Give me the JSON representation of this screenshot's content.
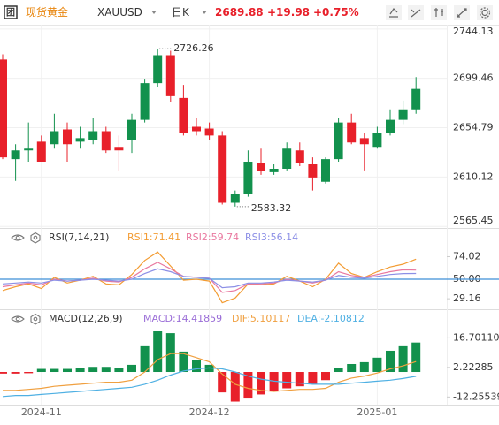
{
  "header": {
    "logo": "团",
    "name": "现货黄金",
    "symbol": "XAUUSD",
    "period": "日K",
    "price": 2689.88,
    "change": {
      "value": 19.98,
      "label": "+19.98"
    },
    "change_pct": {
      "value": 0.75,
      "label": "+0.75%"
    }
  },
  "chart_data": [
    {
      "type": "candlestick",
      "categories": [
        null,
        null,
        null,
        "2024-11",
        null,
        null,
        null,
        null,
        null,
        null,
        null,
        null,
        null,
        null,
        null,
        null,
        "2024-12",
        null,
        null,
        null,
        null,
        null,
        null,
        null,
        null,
        null,
        null,
        null,
        null,
        "2025-01",
        null,
        null,
        null
      ],
      "open": [
        2716.5,
        2626.3,
        2634.2,
        2642.1,
        2639.8,
        2653.2,
        2642.1,
        2643.7,
        2651.6,
        2637.4,
        2643.7,
        2661.9,
        2695.1,
        2720.4,
        2681.7,
        2655.6,
        2654.0,
        2647.7,
        2586.8,
        2594.7,
        2622.4,
        2614.5,
        2617.6,
        2634.2,
        2621.6,
        2605.8,
        2626.3,
        2659.5,
        2645.3,
        2637.4,
        2650.0,
        2661.9,
        2671.4
      ],
      "high": [
        2721.2,
        2639.8,
        2659.5,
        2647.7,
        2667.4,
        2659.5,
        2655.6,
        2663.5,
        2655.6,
        2647.7,
        2667.4,
        2699.1,
        2726.26,
        2724.4,
        2693.5,
        2663.5,
        2659.5,
        2651.6,
        2597.9,
        2634.2,
        2635.8,
        2621.6,
        2641.4,
        2641.4,
        2627.9,
        2627.9,
        2663.5,
        2667.4,
        2650.0,
        2655.6,
        2671.4,
        2679.3,
        2700.6
      ],
      "low": [
        2626.3,
        2606.6,
        2624.0,
        2624.0,
        2635.8,
        2624.0,
        2635.8,
        2639.8,
        2631.9,
        2616.1,
        2631.9,
        2659.5,
        2691.2,
        2677.7,
        2647.7,
        2647.7,
        2643.7,
        2585.2,
        2583.32,
        2592.3,
        2612.1,
        2612.1,
        2616.1,
        2620.0,
        2597.9,
        2604.2,
        2624.0,
        2639.8,
        2616.1,
        2635.8,
        2647.7,
        2658.0,
        2667.4
      ],
      "close": [
        2627.9,
        2634.2,
        2635.8,
        2624.0,
        2651.6,
        2639.8,
        2645.3,
        2651.6,
        2634.2,
        2634.2,
        2661.9,
        2695.1,
        2720.4,
        2683.3,
        2650.0,
        2651.6,
        2647.7,
        2586.8,
        2594.7,
        2624.0,
        2615.3,
        2617.6,
        2635.8,
        2623.2,
        2609.7,
        2626.3,
        2659.5,
        2641.4,
        2639.8,
        2650.0,
        2661.9,
        2671.4,
        2689.88
      ],
      "up_color": "#12914d",
      "down_color": "#e8202a",
      "ylim": [
        2564,
        2748
      ],
      "yticks": [
        2565.45,
        2610.12,
        2654.79,
        2699.46,
        2744.13
      ],
      "grid": true,
      "annotations": [
        2726.26,
        2583.32
      ]
    },
    {
      "type": "line",
      "title": "RSI(7,14,21)",
      "series": [
        {
          "legend": {
            "value": 71.41,
            "label": "RSI1:71.41"
          },
          "color": "#f39c33",
          "values": [
            38,
            42,
            45,
            40,
            52,
            46,
            49,
            53,
            45,
            44,
            55,
            70,
            79,
            64,
            49,
            50,
            48,
            25,
            30,
            45,
            44,
            45,
            53,
            48,
            42,
            50,
            67,
            56,
            52,
            58,
            63,
            66,
            71.41
          ]
        },
        {
          "legend": {
            "value": 59.74,
            "label": "RSI2:59.74"
          },
          "color": "#e9789f",
          "values": [
            42,
            44,
            46,
            44,
            50,
            48,
            49,
            51,
            48,
            47,
            52,
            61,
            68,
            61,
            53,
            52,
            51,
            36,
            38,
            45,
            45,
            46,
            50,
            48,
            46,
            49,
            58,
            54,
            52,
            55,
            58,
            60,
            59.74
          ]
        },
        {
          "legend": {
            "value": 56.14,
            "label": "RSI3:56.14"
          },
          "color": "#8c8fe6",
          "values": [
            45,
            46,
            47,
            46,
            49,
            48,
            49,
            50,
            49,
            48,
            50,
            56,
            61,
            58,
            53,
            52,
            51,
            41,
            42,
            46,
            46,
            47,
            49,
            48,
            47,
            49,
            54,
            52,
            51,
            53,
            55,
            56,
            56.14
          ]
        }
      ],
      "ylim": [
        18,
        82
      ],
      "yticks": [
        29.16,
        {
          "value": 50,
          "label": "50.00"
        },
        74.02
      ],
      "reference_line": 50,
      "reference_color": "#3d8fd8"
    },
    {
      "type": "macd",
      "title": "MACD(12,26,9)",
      "histogram": {
        "legend": {
          "value": 14.41859,
          "label": "MACD:14.41859"
        },
        "color": "#9a6dd7",
        "up_color": "#12914d",
        "down_color": "#e8202a",
        "values": [
          -0.8,
          -0.8,
          -0.6,
          1.5,
          1.5,
          1.5,
          1.8,
          2.5,
          2.5,
          1.8,
          3.5,
          12.6,
          19.9,
          19,
          10,
          6,
          3.5,
          -10,
          -14.5,
          -13,
          -11,
          -9.5,
          -8,
          -7,
          -6,
          -4,
          1.8,
          3.9,
          4.8,
          7,
          10.4,
          12.6,
          14.41859
        ]
      },
      "series": [
        {
          "legend": {
            "value": 5.10117,
            "label": "DIF:5.10117"
          },
          "color": "#f0a040",
          "values": [
            -9,
            -9,
            -8.5,
            -8,
            -7,
            -6.5,
            -6,
            -5.5,
            -5,
            -5,
            -4,
            0,
            6,
            9,
            9,
            7,
            5,
            -1,
            -6,
            -8,
            -9,
            -9.5,
            -9,
            -8.5,
            -8.5,
            -8,
            -5,
            -3,
            -2,
            -0.5,
            1.5,
            3,
            5.10117
          ]
        },
        {
          "legend": {
            "value": -2.10812,
            "label": "DEA:-2.10812"
          },
          "color": "#4fb0e3",
          "values": [
            -12,
            -11.5,
            -11.5,
            -11,
            -10.5,
            -10,
            -9.5,
            -9,
            -8.5,
            -8,
            -7.5,
            -6,
            -4,
            -1.5,
            0.5,
            1.5,
            2,
            1.5,
            0,
            -2,
            -3.5,
            -4.5,
            -5,
            -5.5,
            -6,
            -6,
            -6,
            -5.5,
            -5,
            -4.5,
            -4,
            -3.2,
            -2.10812
          ]
        }
      ],
      "ylim": [
        -16,
        21.2
      ],
      "yticks": [
        {
          "value": -12.25539,
          "label": "-12.25539"
        },
        2.22285,
        {
          "value": 16.7011,
          "label": "16.70110"
        }
      ]
    }
  ]
}
